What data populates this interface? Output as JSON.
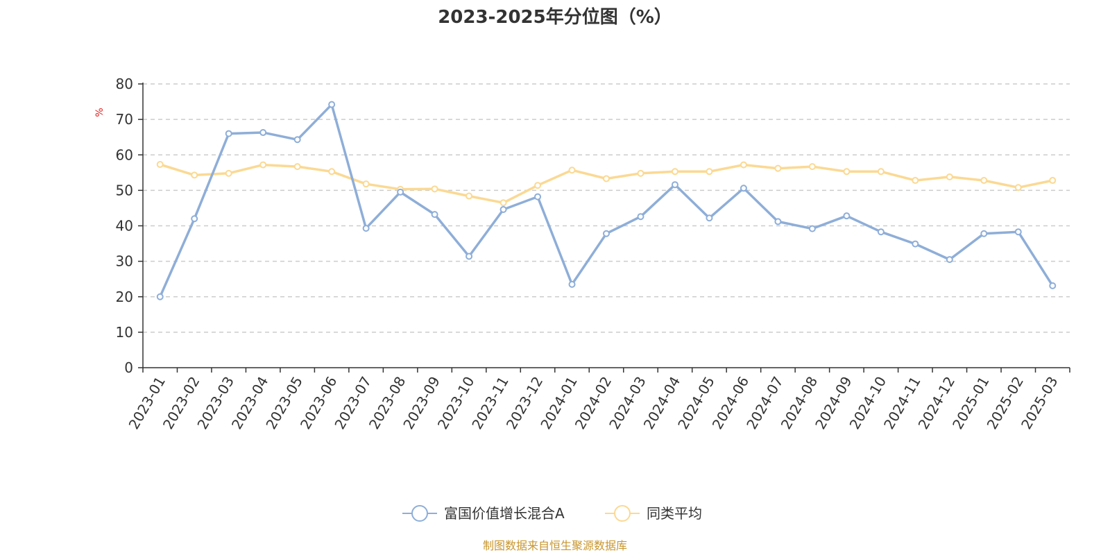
{
  "chart_data": {
    "type": "line",
    "title": "2023-2025年分位图（%）",
    "ylabel": "%",
    "xlabel": "",
    "ylim": [
      0,
      80
    ],
    "yticks": [
      0,
      10,
      20,
      30,
      40,
      50,
      60,
      70,
      80
    ],
    "grid": true,
    "legend_position": "bottom",
    "categories": [
      "2023-01",
      "2023-02",
      "2023-03",
      "2023-04",
      "2023-05",
      "2023-06",
      "2023-07",
      "2023-08",
      "2023-09",
      "2023-10",
      "2023-11",
      "2023-12",
      "2024-01",
      "2024-02",
      "2024-03",
      "2024-04",
      "2024-05",
      "2024-06",
      "2024-07",
      "2024-08",
      "2024-09",
      "2024-10",
      "2024-11",
      "2024-12",
      "2025-01",
      "2025-02",
      "2025-03"
    ],
    "series": [
      {
        "name": "富国价值增长混合A",
        "color": "#8eaed8",
        "values": [
          20,
          42,
          66,
          66.3,
          64.3,
          74.2,
          39.3,
          49.5,
          43.2,
          31.4,
          44.6,
          48.2,
          23.5,
          37.8,
          42.6,
          51.6,
          42.2,
          50.6,
          41.2,
          39.2,
          42.8,
          38.3,
          34.9,
          30.5,
          37.8,
          38.3,
          23.1
        ]
      },
      {
        "name": "同类平均",
        "color": "#fbd993",
        "values": [
          57.3,
          54.3,
          54.8,
          57.2,
          56.7,
          55.3,
          51.8,
          50.3,
          50.4,
          48.4,
          46.5,
          51.4,
          55.7,
          53.3,
          54.8,
          55.3,
          55.3,
          57.2,
          56.2,
          56.7,
          55.3,
          55.3,
          52.8,
          53.8,
          52.8,
          50.8,
          52.8
        ]
      }
    ]
  },
  "source": {
    "text": "制图数据来自恒生聚源数据库",
    "color": "#c8962e"
  },
  "colors": {
    "unit_label": "#e02020",
    "axis": "#333333",
    "grid": "#cccccc"
  }
}
